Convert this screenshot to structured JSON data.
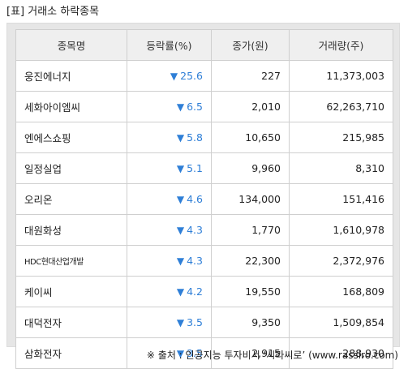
{
  "title": "[표] 거래소 하락종목",
  "columns": [
    "종목명",
    "등락률(%)",
    "종가(원)",
    "거래량(주)"
  ],
  "arrow_symbol": "▼",
  "rows": [
    {
      "name": "웅진에너지",
      "change": "25.6",
      "price": "227",
      "volume": "11,373,003"
    },
    {
      "name": "세화아이엠씨",
      "change": "6.5",
      "price": "2,010",
      "volume": "62,263,710"
    },
    {
      "name": "엔에스쇼핑",
      "change": "5.8",
      "price": "10,650",
      "volume": "215,985"
    },
    {
      "name": "일정실업",
      "change": "5.1",
      "price": "9,960",
      "volume": "8,310"
    },
    {
      "name": "오리온",
      "change": "4.6",
      "price": "134,000",
      "volume": "151,416"
    },
    {
      "name": "대원화성",
      "change": "4.3",
      "price": "1,770",
      "volume": "1,610,978"
    },
    {
      "name": "HDC현대산업개발",
      "change": "4.3",
      "price": "22,300",
      "volume": "2,372,976"
    },
    {
      "name": "케이씨",
      "change": "4.2",
      "price": "19,550",
      "volume": "168,809"
    },
    {
      "name": "대덕전자",
      "change": "3.5",
      "price": "9,350",
      "volume": "1,509,854"
    },
    {
      "name": "삼화전자",
      "change": "3.5",
      "price": "2,915",
      "volume": "288,930"
    }
  ],
  "source": "※ 출처 : 인공지능 투자비서 ‘시라씨로’ (www.rassiro.com)",
  "colors": {
    "down": "#2f7fd7",
    "header_bg": "#efefef",
    "frame_bg": "#e6e6e6"
  }
}
